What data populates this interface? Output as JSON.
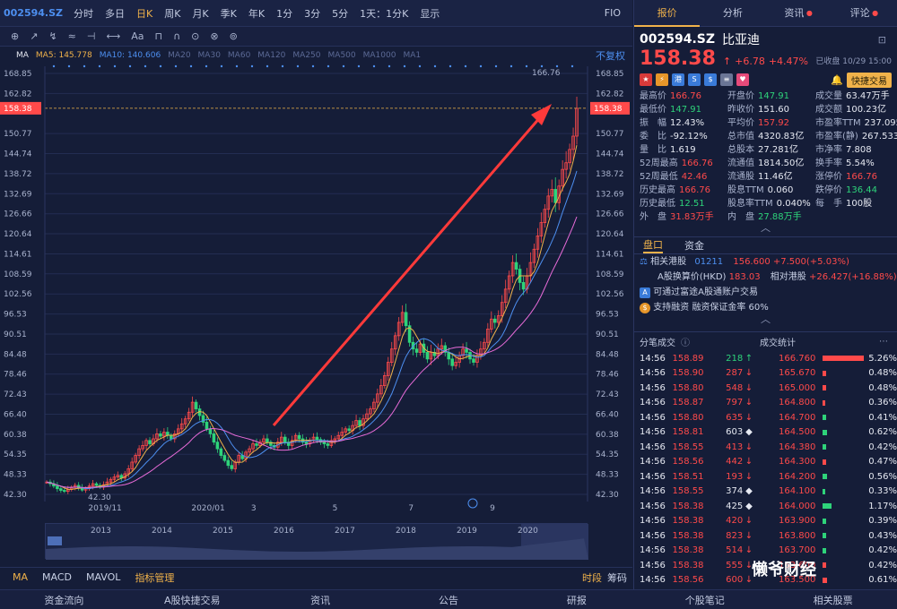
{
  "topbar": {
    "code": "002594.SZ",
    "items": [
      "分时",
      "多日",
      "日K",
      "周K",
      "月K",
      "季K",
      "年K",
      "1分",
      "3分",
      "5分",
      "1天：1分K",
      "显示"
    ],
    "active_index": 2,
    "fq": "FIO"
  },
  "toolbar": {
    "tools": [
      "⊕",
      "↗",
      "↯",
      "≈",
      "⊣",
      "⟷",
      "Aa",
      "⊓",
      "∩",
      "⊙",
      "⊗",
      "⊚"
    ]
  },
  "ma": {
    "label": "MA",
    "ma5": "MA5: 145.778",
    "ma10": "MA10: 140.606",
    "others": [
      "MA20",
      "MA30",
      "MA60",
      "MA120",
      "MA250",
      "MA500",
      "MA1000",
      "MA1"
    ],
    "right": "不复权"
  },
  "chart_data": {
    "type": "candlestick",
    "y_ticks": [
      "168.85",
      "162.82",
      "158.38",
      "150.77",
      "144.74",
      "138.72",
      "132.69",
      "126.66",
      "120.64",
      "114.61",
      "108.59",
      "102.56",
      "96.53",
      "90.51",
      "84.48",
      "78.46",
      "72.43",
      "66.40",
      "60.38",
      "54.35",
      "48.33",
      "42.30"
    ],
    "ylim": [
      42.3,
      168.85
    ],
    "x_labels": [
      "2019/11",
      "2020/01",
      "3",
      "5",
      "7",
      "9"
    ],
    "high_label": "166.76",
    "low_label": "42.30",
    "current_label": "158.38",
    "close_series": [
      46,
      45.5,
      44.8,
      44,
      43.5,
      43.2,
      43.8,
      44.5,
      45,
      44.2,
      43.6,
      44,
      44.8,
      45.5,
      45,
      44.5,
      45.2,
      46,
      46.8,
      47.5,
      48,
      47.2,
      48.5,
      50,
      52,
      54,
      56,
      57,
      58.5,
      57.5,
      59,
      60.5,
      59.8,
      61,
      60,
      59,
      60.5,
      62,
      63.5,
      65,
      67,
      70,
      68,
      66,
      64,
      62,
      60.5,
      58,
      56,
      54,
      52.5,
      51,
      50,
      52,
      54,
      53,
      55,
      56,
      57.5,
      57,
      58,
      59,
      58,
      57,
      56.5,
      58,
      59.5,
      58,
      57,
      58.5,
      60,
      59,
      58,
      57.5,
      58.5,
      59.5,
      58.8,
      58,
      57.5,
      57,
      58.5,
      59,
      60,
      61,
      62,
      61.5,
      63,
      64.5,
      63,
      65,
      66.5,
      68,
      70,
      72.5,
      75,
      78,
      82,
      86,
      90,
      94,
      97,
      93,
      88,
      86,
      85,
      87.5,
      85,
      83,
      85,
      84,
      86,
      87,
      85,
      83,
      81,
      82,
      84,
      86,
      85,
      83,
      82,
      84,
      86,
      88,
      92,
      95,
      94,
      96,
      100,
      104,
      108,
      112,
      110,
      106,
      104,
      108,
      112,
      116,
      120,
      124,
      128,
      132,
      134,
      130,
      135,
      140,
      142,
      146,
      150,
      158.38
    ],
    "navigator_years": [
      "2013",
      "2014",
      "2015",
      "2016",
      "2017",
      "2018",
      "2019",
      "2020"
    ]
  },
  "bottom_tabs": [
    "MA",
    "MACD",
    "MAVOL",
    "指标管理"
  ],
  "bottom_right": [
    "时段",
    "筹码"
  ],
  "footer": [
    "资金流向",
    "A股快捷交易",
    "资讯",
    "公告",
    "研报",
    "个股笔记",
    "相关股票"
  ],
  "right": {
    "tabs": [
      "报价",
      "分析",
      "资讯",
      "评论"
    ],
    "code": "002594.SZ",
    "name": "比亚迪",
    "price": "158.38",
    "arrow": "↑",
    "change": "+6.78",
    "pct": "+4.47%",
    "date": "已收盘 10/29 15:00",
    "fast_btn": "快捷交易",
    "quotes": [
      [
        [
          "最高价",
          "166.76",
          "red"
        ],
        [
          "开盘价",
          "147.91",
          "green"
        ],
        [
          "成交量",
          "63.47万手",
          "white"
        ]
      ],
      [
        [
          "最低价",
          "147.91",
          "green"
        ],
        [
          "昨收价",
          "151.60",
          "white"
        ],
        [
          "成交额",
          "100.23亿",
          "white"
        ]
      ],
      [
        [
          "振　幅",
          "12.43%",
          "white"
        ],
        [
          "平均价",
          "157.92",
          "red"
        ],
        [
          "市盈率TTM",
          "237.095",
          "white"
        ]
      ],
      [
        [
          "委　比",
          "-92.12%",
          "white"
        ],
        [
          "总市值",
          "4320.83亿",
          "white"
        ],
        [
          "市盈率(静)",
          "267.533",
          "white"
        ]
      ],
      [
        [
          "量　比",
          "1.619",
          "white"
        ],
        [
          "总股本",
          "27.281亿",
          "white"
        ],
        [
          "市净率",
          "7.808",
          "white"
        ]
      ],
      [
        [
          "52周最高",
          "166.76",
          "red"
        ],
        [
          "流通值",
          "1814.50亿",
          "white"
        ],
        [
          "换手率",
          "5.54%",
          "white"
        ]
      ],
      [
        [
          "52周最低",
          "42.46",
          "red"
        ],
        [
          "流通股",
          "11.46亿",
          "white"
        ],
        [
          "涨停价",
          "166.76",
          "red"
        ]
      ],
      [
        [
          "历史最高",
          "166.76",
          "red"
        ],
        [
          "股息TTM",
          "0.060",
          "white"
        ],
        [
          "跌停价",
          "136.44",
          "green"
        ]
      ],
      [
        [
          "历史最低",
          "12.51",
          "green"
        ],
        [
          "股息率TTM",
          "0.040%",
          "white"
        ],
        [
          "每　手",
          "100股",
          "white"
        ]
      ],
      [
        [
          "外　盘",
          "31.83万手",
          "red"
        ],
        [
          "内　盘",
          "27.88万手",
          "green"
        ],
        [
          "",
          ""
        ]
      ]
    ],
    "sec_tabs": [
      "盘口",
      "资金"
    ],
    "hk": {
      "label": "相关港股",
      "code": "01211",
      "price": "156.600",
      "chg": "+7.500(+5.03%)",
      "a_label": "A股换算价(HKD)",
      "a_val": "183.03",
      "rel_label": "相对港股",
      "rel_val": "+26.427(+16.88%)"
    },
    "notes": [
      "可通过富途A股通账户交易",
      "支持融资  融资保证金率 60%"
    ],
    "trade_head": [
      "分笔成交",
      "成交统计"
    ],
    "trades": [
      [
        "14:56",
        "158.89",
        "218",
        "↑",
        "166.760",
        "5.26%",
        "red",
        100
      ],
      [
        "14:56",
        "158.90",
        "287",
        "↓",
        "165.670",
        "0.48%",
        "red",
        9
      ],
      [
        "14:56",
        "158.80",
        "548",
        "↓",
        "165.000",
        "0.48%",
        "red",
        9
      ],
      [
        "14:56",
        "158.87",
        "797",
        "↓",
        "164.800",
        "0.36%",
        "red",
        6
      ],
      [
        "14:56",
        "158.80",
        "635",
        "↓",
        "164.700",
        "0.41%",
        "green",
        7
      ],
      [
        "14:56",
        "158.81",
        "603",
        "◆",
        "164.500",
        "0.62%",
        "green",
        11
      ],
      [
        "14:56",
        "158.55",
        "413",
        "↓",
        "164.380",
        "0.42%",
        "green",
        8
      ],
      [
        "14:56",
        "158.56",
        "442",
        "↓",
        "164.300",
        "0.47%",
        "red",
        9
      ],
      [
        "14:56",
        "158.51",
        "193",
        "↓",
        "164.200",
        "0.56%",
        "green",
        10
      ],
      [
        "14:56",
        "158.55",
        "374",
        "◆",
        "164.100",
        "0.33%",
        "green",
        6
      ],
      [
        "14:56",
        "158.38",
        "425",
        "◆",
        "164.000",
        "1.17%",
        "green",
        22
      ],
      [
        "14:56",
        "158.38",
        "420",
        "↓",
        "163.900",
        "0.39%",
        "green",
        7
      ],
      [
        "14:56",
        "158.38",
        "823",
        "↓",
        "163.800",
        "0.43%",
        "green",
        8
      ],
      [
        "14:56",
        "158.38",
        "514",
        "↓",
        "163.700",
        "0.42%",
        "green",
        8
      ],
      [
        "14:56",
        "158.38",
        "555",
        "↓",
        "163.600",
        "0.42%",
        "red",
        8
      ],
      [
        "14:56",
        "158.56",
        "600",
        "↓",
        "163.500",
        "0.61%",
        "red",
        11
      ]
    ]
  },
  "watermark": "懒爷财经"
}
